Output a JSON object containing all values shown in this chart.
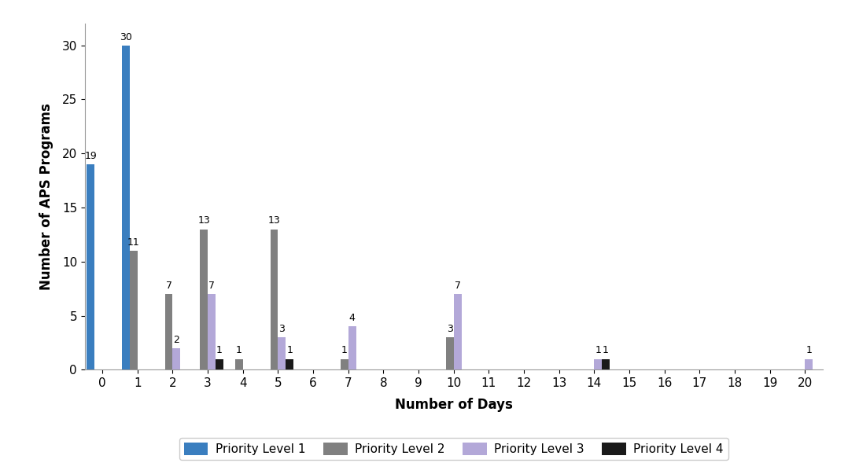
{
  "title": "",
  "xlabel": "Number of Days",
  "ylabel": "Number of APS Programs",
  "xlim": [
    -0.5,
    20.5
  ],
  "ylim": [
    0,
    32
  ],
  "yticks": [
    0,
    5,
    10,
    15,
    20,
    25,
    30
  ],
  "xticks": [
    0,
    1,
    2,
    3,
    4,
    5,
    6,
    7,
    8,
    9,
    10,
    11,
    12,
    13,
    14,
    15,
    16,
    17,
    18,
    19,
    20
  ],
  "colors": {
    "priority1": "#3A7EBF",
    "priority2": "#808080",
    "priority3": "#B3A8D8",
    "priority4": "#1A1A1A"
  },
  "bar_width": 0.22,
  "background_color": "#FFFFFF",
  "legend_labels": [
    "Priority Level 1",
    "Priority Level 2",
    "Priority Level 3",
    "Priority Level 4"
  ],
  "series": {
    "priority1": {
      "days": [
        0,
        1
      ],
      "values": [
        19,
        30
      ]
    },
    "priority2": {
      "days": [
        1,
        2,
        3,
        4,
        5,
        7,
        10
      ],
      "values": [
        11,
        7,
        13,
        1,
        13,
        1,
        3
      ]
    },
    "priority3": {
      "days": [
        2,
        3,
        5,
        7,
        10,
        14,
        20
      ],
      "values": [
        2,
        7,
        3,
        4,
        7,
        1,
        1
      ]
    },
    "priority4": {
      "days": [
        3,
        5,
        14
      ],
      "values": [
        1,
        1,
        1
      ]
    }
  },
  "font_size_labels": 12,
  "font_size_ticks": 11,
  "font_size_annotations": 9,
  "font_size_legend": 11,
  "border_color": "#CCCCCC"
}
